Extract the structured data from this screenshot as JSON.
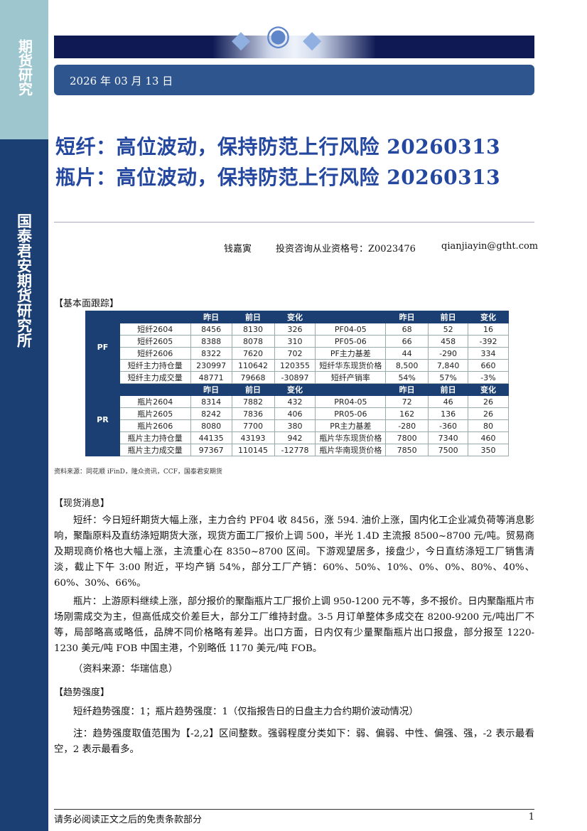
{
  "sidebar": {
    "top": "期货研究",
    "bottom": "国泰君安期货研究所"
  },
  "date": "2026 年 03 月 13 日",
  "titles": [
    "短纤：高位波动，保持防范上行风险 20260313",
    "瓶片：高位波动，保持防范上行风险 20260313"
  ],
  "author": {
    "name": "钱嘉寅",
    "license": "投资咨询从业资格号：Z0023476",
    "email": "qianjiayin@gtht.com"
  },
  "fundamentals_heading": "【基本面跟踪】",
  "table": {
    "header": [
      "昨日",
      "前日",
      "变化"
    ],
    "groups": [
      {
        "label": "PF",
        "rows": [
          [
            "短纤2604",
            "8456",
            "8130",
            "326",
            "PF04-05",
            "68",
            "52",
            "16"
          ],
          [
            "短纤2605",
            "8388",
            "8078",
            "310",
            "PF05-06",
            "66",
            "458",
            "-392"
          ],
          [
            "短纤2606",
            "8322",
            "7620",
            "702",
            "PF主力基差",
            "44",
            "-290",
            "334"
          ],
          [
            "短纤主力持仓量",
            "230997",
            "110642",
            "120355",
            "短纤华东现货价格",
            "8,500",
            "7,840",
            "660"
          ],
          [
            "短纤主力成交量",
            "48771",
            "79668",
            "-30897",
            "短纤产销率",
            "54%",
            "57%",
            "-3%"
          ]
        ]
      },
      {
        "label": "PR",
        "rows": [
          [
            "瓶片2604",
            "8314",
            "7882",
            "432",
            "PR04-05",
            "72",
            "46",
            "26"
          ],
          [
            "瓶片2605",
            "8242",
            "7836",
            "406",
            "PR05-06",
            "162",
            "136",
            "26"
          ],
          [
            "瓶片2606",
            "8080",
            "7700",
            "380",
            "PR主力基差",
            "-280",
            "-360",
            "80"
          ],
          [
            "瓶片主力持仓量",
            "44135",
            "43193",
            "942",
            "瓶片华东现货价格",
            "7800",
            "7340",
            "460"
          ],
          [
            "瓶片主力成交量",
            "97367",
            "110145",
            "-12778",
            "瓶片华南现货价格",
            "7850",
            "7500",
            "350"
          ]
        ]
      }
    ]
  },
  "source": "资料来源：同花顺 iFinD，隆众资讯，CCF，国泰君安期货",
  "spot_heading": "【现货消息】",
  "spot_pf": "短纤：今日短纤期货大幅上涨，主力合约 PF04 收 8456，涨 594. 油价上涨，国内化工企业减负荷等消息影响，聚酯原料及直纺涤短期货大涨，现货方面工厂报价上调 500，半光 1.4D 主流报 8500~8700 元/吨。贸易商及期现商价格也大幅上涨，主流重心在 8350~8700 区间。下游观望居多，接盘少，今日直纺涤短工厂销售清淡，截止下午 3:00 附近，平均产销 54%，部分工厂产销：60%、50%、10%、0%、0%、80%、40%、60%、30%、66%。",
  "spot_pr": "瓶片：上游原料继续上涨，部分报价的聚酯瓶片工厂报价上调 950-1200 元不等，多不报价。日内聚酯瓶片市场刚需成交为主，但高低成交价差巨大，部分工厂维持封盘。3-5 月订单整体多成交在 8200-9200 元/吨出厂不等，局部略高或略低，品牌不同价格略有差异。出口方面，日内仅有少量聚酯瓶片出口报盘，部分报至 1220-1230 美元/吨 FOB 中国主港，个别略低 1170 美元/吨 FOB。",
  "spot_source": "（资料来源：华瑞信息）",
  "trend_heading": "【趋势强度】",
  "trend_text": "短纤趋势强度：1；瓶片趋势强度：1（仅指报告日的日盘主力合约期价波动情况）",
  "trend_note": "注：趋势强度取值范围为【-2,2】区间整数。强弱程度分类如下：弱、偏弱、中性、偏强、强，-2 表示最看空，2 表示最看多。",
  "footer": {
    "disclaimer": "请务必阅读正文之后的免责条款部分",
    "page": "1"
  },
  "colors": {
    "navy": "#1b3f73",
    "title_blue": "#2447a0",
    "sidebar_light": "#9ec6cf"
  }
}
